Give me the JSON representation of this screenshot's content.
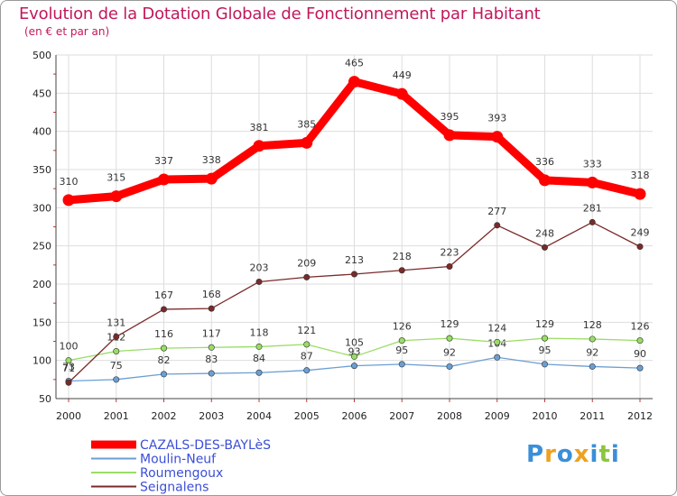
{
  "chart_data": {
    "type": "line",
    "title": "Evolution de la Dotation Globale de Fonctionnement par Habitant",
    "subtitle": "(en € et par an)",
    "xlabel": "",
    "ylabel": "",
    "ylim": [
      50,
      500
    ],
    "yticks": [
      50,
      100,
      150,
      200,
      250,
      300,
      350,
      400,
      450,
      500
    ],
    "grid": true,
    "legend_position": "bottom-left",
    "categories": [
      "2000",
      "2001",
      "2002",
      "2003",
      "2004",
      "2005",
      "2006",
      "2007",
      "2008",
      "2009",
      "2010",
      "2011",
      "2012"
    ],
    "series": [
      {
        "name": "CAZALS-DES-BAYLèS",
        "color": "#ff0000",
        "values": [
          310,
          315,
          337,
          338,
          381,
          385,
          465,
          449,
          395,
          393,
          336,
          333,
          318
        ]
      },
      {
        "name": "Moulin-Neuf",
        "color": "#6a9fd4",
        "values": [
          73,
          75,
          82,
          83,
          84,
          87,
          93,
          95,
          92,
          104,
          95,
          92,
          90
        ]
      },
      {
        "name": "Roumengoux",
        "color": "#99dd66",
        "values": [
          100,
          112,
          116,
          117,
          118,
          121,
          105,
          126,
          129,
          124,
          129,
          128,
          126
        ]
      },
      {
        "name": "Seignalens",
        "color": "#7a2a2a",
        "values": [
          71,
          131,
          167,
          168,
          203,
          209,
          213,
          218,
          223,
          277,
          248,
          281,
          249
        ]
      }
    ]
  },
  "logo": {
    "text": "Proxiti",
    "letters": [
      "P",
      "r",
      "o",
      "x",
      "i",
      "t",
      "i"
    ],
    "colors": [
      "#3a8fd8",
      "#f0a020",
      "#3a8fd8",
      "#f0a020",
      "#3a8fd8",
      "#8cc63f",
      "#3a8fd8"
    ]
  }
}
